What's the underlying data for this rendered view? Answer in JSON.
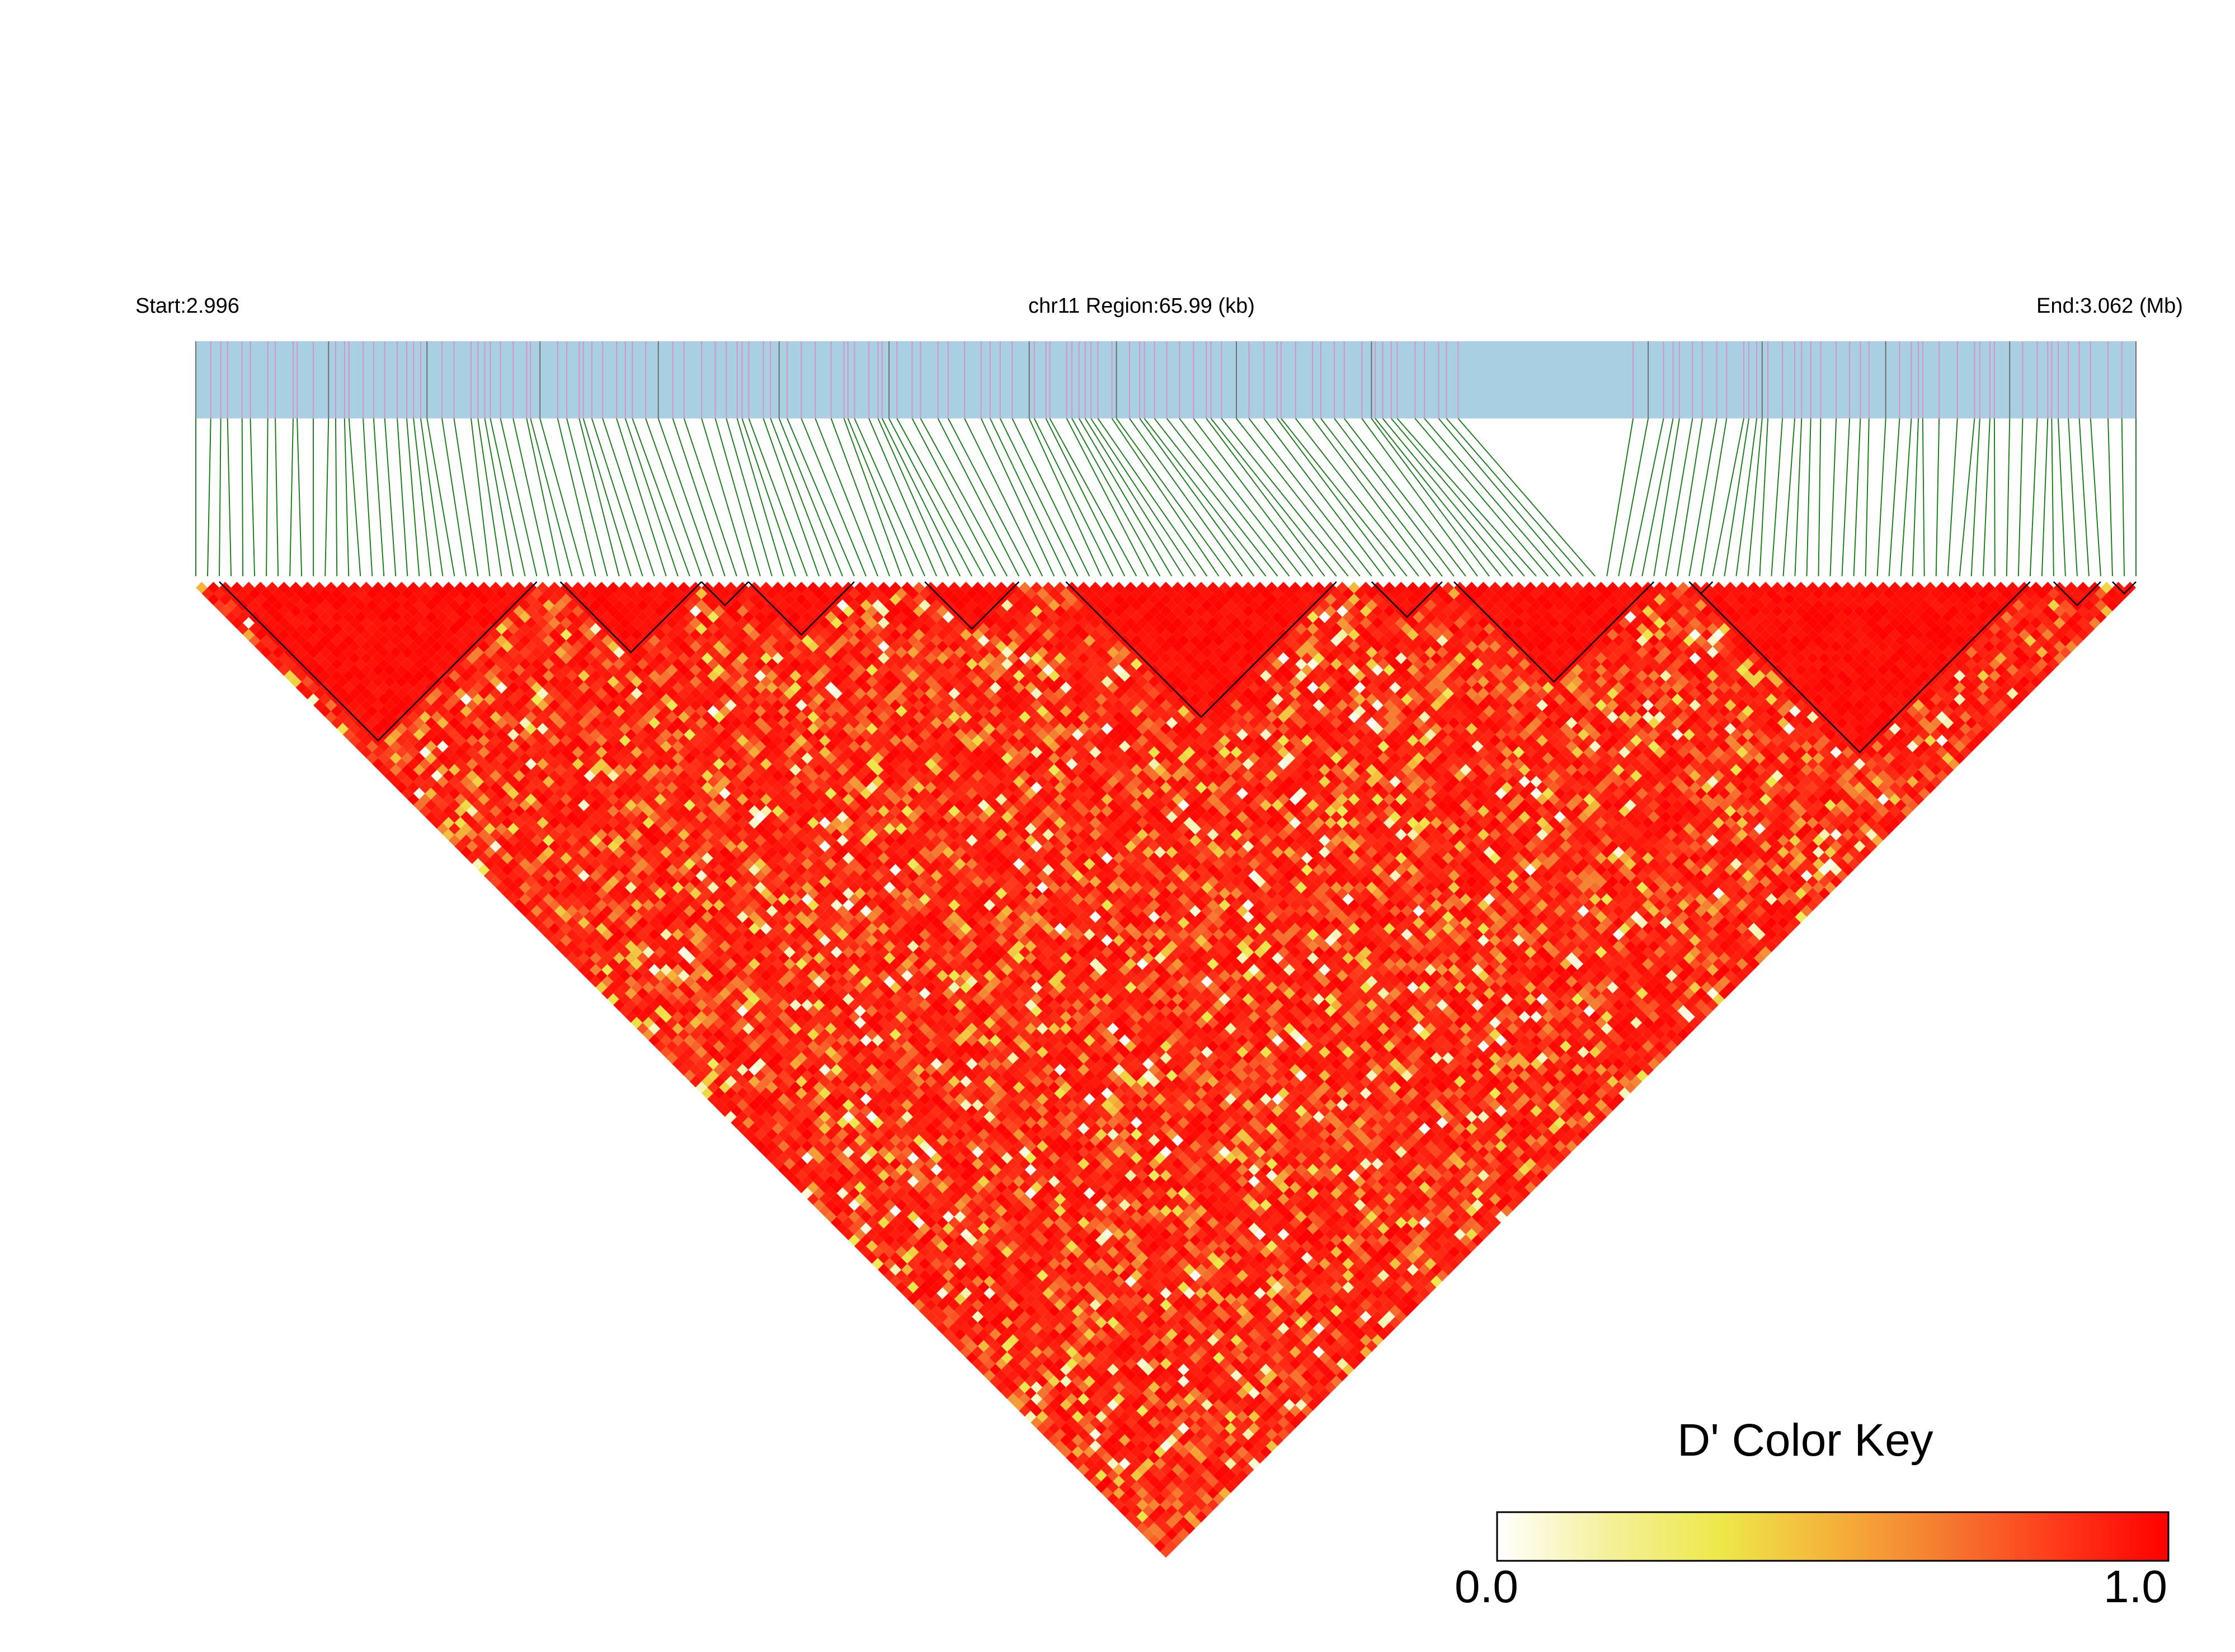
{
  "header": {
    "start_label": "Start:2.996",
    "region_label": "chr11 Region:65.99 (kb)",
    "end_label": "End:3.062 (Mb)"
  },
  "color_key": {
    "title": "D' Color Key",
    "min_label": "0.0",
    "max_label": "1.0",
    "stops": [
      "#ffffff",
      "#f5f09a",
      "#ede84a",
      "#f5b23a",
      "#f57a30",
      "#ff3a1a",
      "#ff0000"
    ]
  },
  "colors": {
    "gene_track": "#a8cfe2",
    "variant_tick": "#d693c8",
    "variant_tick_dark": "#707070",
    "connector": "#1e7f1e",
    "block_outline": "#000000",
    "high_ld": "#ff0000"
  },
  "chart_data": {
    "type": "heatmap",
    "title": "",
    "chromosome": "chr11",
    "region_start_mb": 2.996,
    "region_end_mb": 3.062,
    "region_length_kb": 65.99,
    "value_name": "D'",
    "value_range": [
      0.0,
      1.0
    ],
    "num_snps": 166,
    "ld_block_snp_index_ranges": [
      [
        3,
        30
      ],
      [
        32,
        44
      ],
      [
        44,
        48
      ],
      [
        48,
        57
      ],
      [
        63,
        71
      ],
      [
        75,
        98
      ],
      [
        101,
        107
      ],
      [
        108,
        125
      ],
      [
        128,
        130
      ],
      [
        128,
        157
      ],
      [
        159,
        163
      ],
      [
        164,
        166
      ]
    ]
  }
}
